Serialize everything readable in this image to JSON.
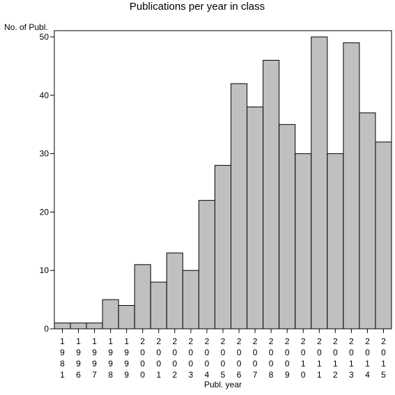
{
  "chart_data": {
    "type": "bar",
    "title": "Publications per year in class",
    "ylabel": "No. of Publ.",
    "xlabel": "Publ. year",
    "categories": [
      "1981",
      "1996",
      "1997",
      "1998",
      "1999",
      "2000",
      "2001",
      "2002",
      "2003",
      "2004",
      "2005",
      "2006",
      "2007",
      "2008",
      "2009",
      "2010",
      "2011",
      "2012",
      "2013",
      "2014",
      "2015"
    ],
    "values": [
      1,
      1,
      1,
      5,
      4,
      11,
      8,
      13,
      10,
      22,
      28,
      42,
      38,
      46,
      35,
      30,
      50,
      30,
      49,
      37,
      32
    ],
    "ylim": [
      0,
      50
    ],
    "yticks": [
      0,
      10,
      20,
      30,
      40,
      50
    ],
    "grid": false,
    "bar_color": "#c0c0c0",
    "bar_edge_color": "#000000"
  }
}
